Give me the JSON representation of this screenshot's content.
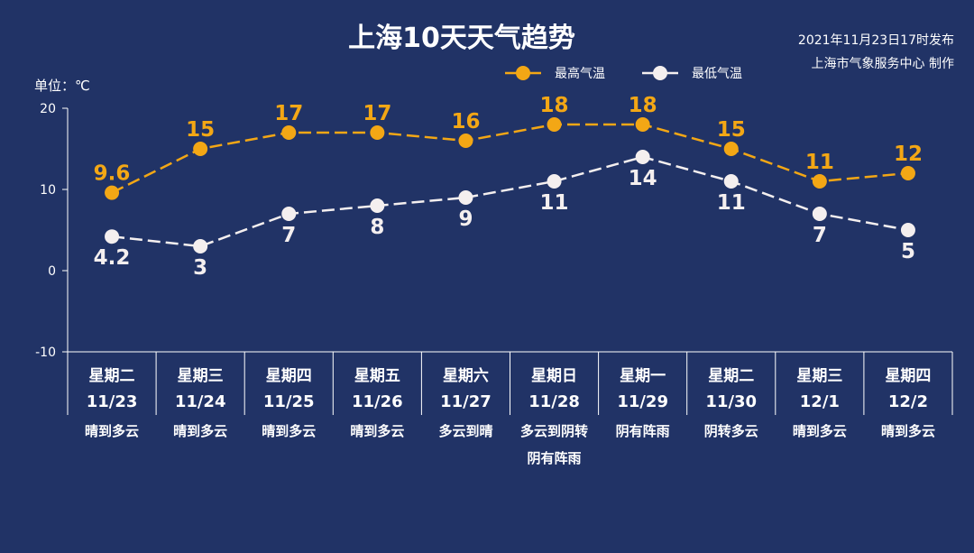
{
  "header": {
    "title": "上海10天天气趋势",
    "publish_time": "2021年11月23日17时发布",
    "publisher": "上海市气象服务中心 制作"
  },
  "colors": {
    "background": "#213366",
    "high": "#f3a715",
    "low": "#f4efef",
    "axis": "#ffffff"
  },
  "chart_data": {
    "type": "line",
    "unit_label": "单位：℃",
    "ylim": [
      -10,
      20
    ],
    "yticks": [
      -10,
      0,
      10,
      20
    ],
    "categories": [
      "11/23",
      "11/24",
      "11/25",
      "11/26",
      "11/27",
      "11/28",
      "11/29",
      "11/30",
      "12/1",
      "12/2"
    ],
    "weekdays": [
      "星期二",
      "星期三",
      "星期四",
      "星期五",
      "星期六",
      "星期日",
      "星期一",
      "星期二",
      "星期三",
      "星期四"
    ],
    "conditions": [
      [
        "晴到多云"
      ],
      [
        "晴到多云"
      ],
      [
        "晴到多云"
      ],
      [
        "晴到多云"
      ],
      [
        "多云到晴"
      ],
      [
        "多云到阴转",
        "阴有阵雨"
      ],
      [
        "阴有阵雨"
      ],
      [
        "阴转多云"
      ],
      [
        "晴到多云"
      ],
      [
        "晴到多云"
      ]
    ],
    "series": [
      {
        "name": "最高气温",
        "color": "#f3a715",
        "values": [
          9.6,
          15,
          17,
          17,
          16,
          18,
          18,
          15,
          11,
          12
        ],
        "labels": [
          "9.6",
          "15",
          "17",
          "17",
          "16",
          "18",
          "18",
          "15",
          "11",
          "12"
        ],
        "label_pos": [
          "above",
          "above",
          "above",
          "above",
          "above",
          "above",
          "above",
          "above",
          "above",
          "above"
        ]
      },
      {
        "name": "最低气温",
        "color": "#f4efef",
        "values": [
          4.2,
          3,
          7,
          8,
          9,
          11,
          14,
          11,
          7,
          5
        ],
        "labels": [
          "4.2",
          "3",
          "7",
          "8",
          "9",
          "11",
          "14",
          "11",
          "7",
          "5"
        ],
        "label_pos": [
          "below",
          "below",
          "below",
          "below",
          "below",
          "below",
          "below",
          "below",
          "below",
          "below"
        ]
      }
    ],
    "legend_position": "top-center",
    "grid": false,
    "line_style": "dashed"
  }
}
